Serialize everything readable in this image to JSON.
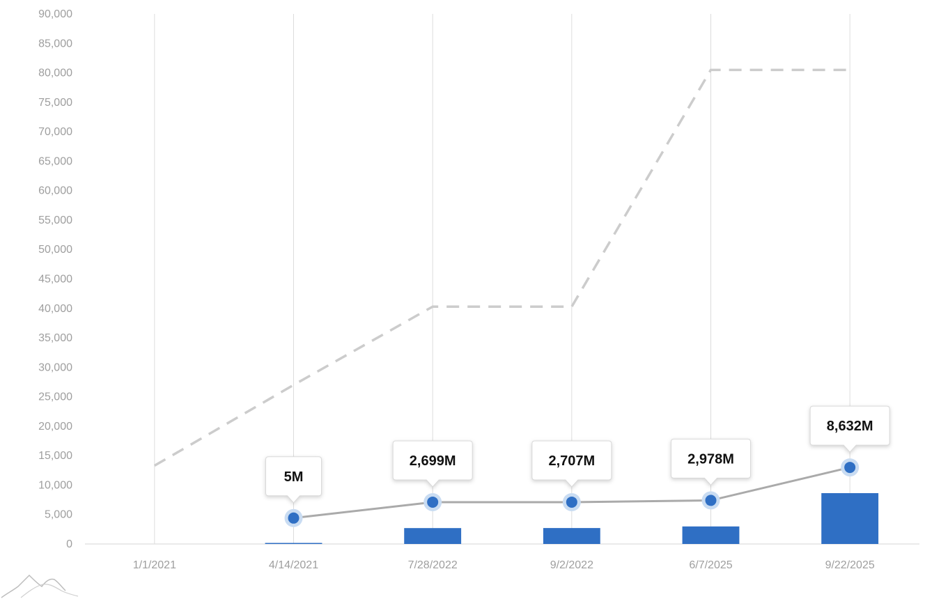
{
  "chart_data": {
    "type": "bar",
    "categories": [
      "1/1/2021",
      "4/14/2021",
      "7/28/2022",
      "9/2/2022",
      "6/7/2025",
      "9/22/2025"
    ],
    "ylim": [
      0,
      90000
    ],
    "yticks": [
      0,
      5000,
      10000,
      15000,
      20000,
      25000,
      30000,
      35000,
      40000,
      45000,
      50000,
      55000,
      60000,
      65000,
      70000,
      75000,
      80000,
      85000,
      90000
    ],
    "ytick_labels": [
      "0",
      "5,000",
      "10,000",
      "15,000",
      "20,000",
      "25,000",
      "30,000",
      "35,000",
      "40,000",
      "45,000",
      "50,000",
      "55,000",
      "60,000",
      "65,000",
      "70,000",
      "75,000",
      "80,000",
      "85,000",
      "90,000"
    ],
    "grid": "vertical",
    "series": [
      {
        "type": "bar",
        "color": "#2f6fc4",
        "values": [
          null,
          5,
          2699,
          2707,
          2978,
          8632
        ],
        "labels": [
          null,
          "5M",
          "2,699M",
          "2,707M",
          "2,978M",
          "8,632M"
        ]
      },
      {
        "type": "line",
        "color": "#aaaaaa",
        "marker_color": "#2f6fc4",
        "values": [
          null,
          4400,
          7100,
          7100,
          7400,
          13000
        ]
      },
      {
        "type": "line",
        "style": "dashed",
        "color": "#cccccc",
        "values": [
          13300,
          27000,
          40300,
          40300,
          80500,
          80500
        ]
      }
    ]
  },
  "logo": {
    "icon": "mountain-line-icon"
  }
}
